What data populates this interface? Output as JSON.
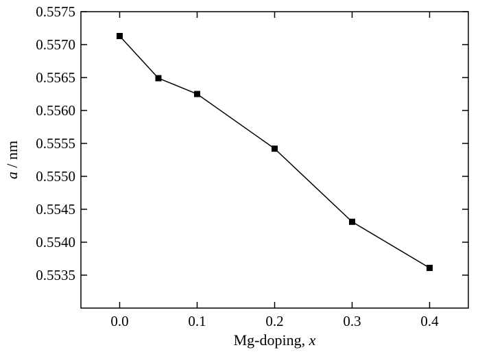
{
  "chart_data": {
    "type": "line",
    "title": "",
    "xlabel": {
      "text": "Mg-doping, ",
      "var": "x"
    },
    "ylabel": {
      "var": "a",
      "text": " / nm"
    },
    "xlim": [
      -0.05,
      0.45
    ],
    "ylim": [
      0.553,
      0.5575
    ],
    "x_ticks": [
      0.0,
      0.1,
      0.2,
      0.3,
      0.4
    ],
    "x_tick_labels": [
      "0.0",
      "0.1",
      "0.2",
      "0.3",
      "0.4"
    ],
    "y_ticks": [
      0.5535,
      0.554,
      0.5545,
      0.555,
      0.5555,
      0.556,
      0.5565,
      0.557,
      0.5575
    ],
    "y_tick_labels": [
      "0.5535",
      "0.5540",
      "0.5545",
      "0.5550",
      "0.5555",
      "0.5560",
      "0.5565",
      "0.5570",
      "0.5575"
    ],
    "grid": false,
    "legend": "none",
    "series": [
      {
        "marker": "square",
        "color": "#000000",
        "points": [
          {
            "x": 0.0,
            "y": 0.55713
          },
          {
            "x": 0.05,
            "y": 0.55649
          },
          {
            "x": 0.1,
            "y": 0.55625
          },
          {
            "x": 0.2,
            "y": 0.55542
          },
          {
            "x": 0.3,
            "y": 0.55431
          },
          {
            "x": 0.4,
            "y": 0.55361
          }
        ]
      }
    ]
  }
}
